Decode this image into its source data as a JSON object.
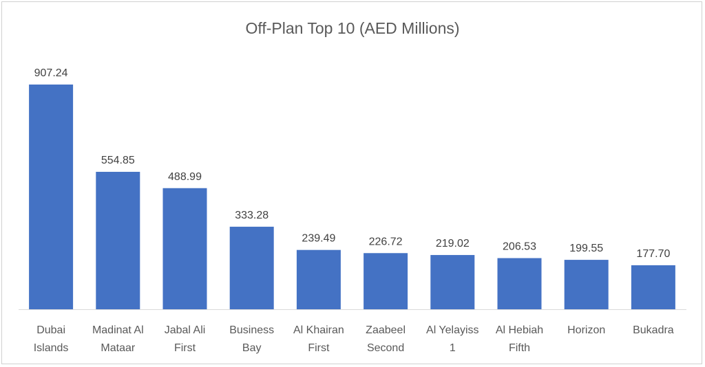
{
  "chart_data": {
    "type": "bar",
    "title": "Off-Plan Top 10 (AED Millions)",
    "categories": [
      [
        "Dubai",
        "Islands"
      ],
      [
        "Madinat Al",
        "Mataar"
      ],
      [
        "Jabal Ali",
        "First"
      ],
      [
        "Business",
        "Bay"
      ],
      [
        "Al Khairan",
        "First"
      ],
      [
        "Zaabeel",
        "Second"
      ],
      [
        "Al Yelayiss",
        "1"
      ],
      [
        "Al Hebiah",
        "Fifth"
      ],
      [
        "Horizon"
      ],
      [
        "Bukadra"
      ]
    ],
    "values": [
      907.24,
      554.85,
      488.99,
      333.28,
      239.49,
      226.72,
      219.02,
      206.53,
      199.55,
      177.7
    ],
    "value_labels": [
      "907.24",
      "554.85",
      "488.99",
      "333.28",
      "239.49",
      "226.72",
      "219.02",
      "206.53",
      "199.55",
      "177.70"
    ],
    "xlabel": "",
    "ylabel": "",
    "ylim": [
      0,
      1000
    ],
    "grid": false,
    "legend": "none",
    "bar_color": "#4472C4"
  }
}
